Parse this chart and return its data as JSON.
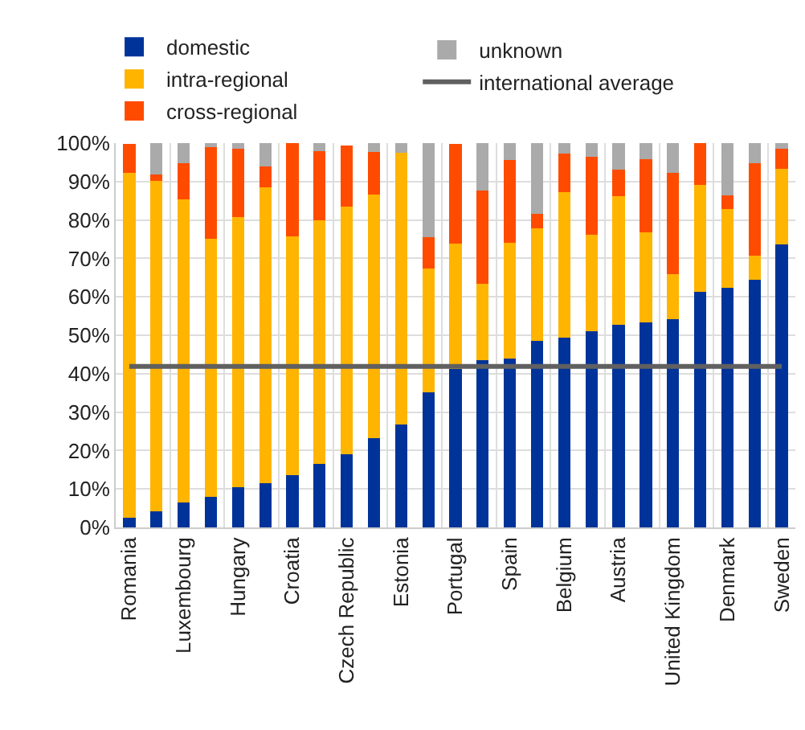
{
  "chart_data": {
    "type": "bar",
    "stacked": true,
    "grid": true,
    "legend": "top",
    "categories": [
      "Romania",
      null,
      "Luxembourg",
      null,
      "Hungary",
      null,
      "Croatia",
      null,
      "Czech Republic",
      null,
      "Estonia",
      null,
      "Portugal",
      null,
      "Spain",
      null,
      "Belgium",
      null,
      "Austria",
      null,
      "United Kingdom",
      null,
      "Denmark",
      null,
      "Sweden"
    ],
    "series": [
      {
        "name": "domestic",
        "color": "#003399",
        "values": [
          2.5,
          4.2,
          6.4,
          8,
          10.5,
          11.5,
          13.5,
          16.5,
          19.1,
          23.2,
          26.8,
          35.1,
          41.3,
          43.6,
          44,
          48.6,
          49.3,
          51,
          52.8,
          53.4,
          54.2,
          61.2,
          62.4,
          64.5,
          73.7
        ]
      },
      {
        "name": "intra-regional",
        "color": "#ffb400",
        "values": [
          89.7,
          86,
          78.9,
          67.1,
          70.2,
          76.9,
          62.2,
          63.5,
          64.3,
          63.4,
          70.7,
          32.2,
          32.6,
          19.7,
          30,
          29.3,
          38,
          25.1,
          33.4,
          23.3,
          11.6,
          28,
          20.4,
          6.2,
          19.7
        ]
      },
      {
        "name": "cross-regional",
        "color": "#ff4b00",
        "values": [
          7.5,
          1.7,
          9.4,
          23.8,
          17.8,
          5.5,
          24.3,
          17.9,
          15.9,
          11,
          0,
          8.3,
          25.8,
          24.3,
          21.7,
          3.7,
          10,
          20.3,
          7,
          19.1,
          26.4,
          10.8,
          3.5,
          24,
          5.1
        ]
      },
      {
        "name": "unknown",
        "color": "#aaaaaa",
        "values": [
          null,
          8.1,
          5.3,
          1.1,
          1.5,
          6.1,
          0,
          2.1,
          null,
          2.4,
          2.5,
          24.4,
          null,
          12.4,
          4.3,
          18.4,
          2.7,
          3.6,
          6.8,
          4.2,
          7.8,
          0,
          13.7,
          5.3,
          1.5
        ]
      }
    ],
    "ylim": [
      0,
      100
    ],
    "yticks": [
      {
        "value": 0,
        "label": "0%"
      },
      {
        "value": 10,
        "label": "10%"
      },
      {
        "value": 20,
        "label": "20%"
      },
      {
        "value": 30,
        "label": "30%"
      },
      {
        "value": 40,
        "label": "40%"
      },
      {
        "value": 50,
        "label": "50%"
      },
      {
        "value": 60,
        "label": "60%"
      },
      {
        "value": 70,
        "label": "70%"
      },
      {
        "value": 80,
        "label": "80%"
      },
      {
        "value": 90,
        "label": "90%"
      },
      {
        "value": 100,
        "label": "100%"
      }
    ],
    "ref_lines": [
      {
        "axis": "y",
        "value": 41.9,
        "label": "international average",
        "color": "#606060"
      }
    ]
  }
}
